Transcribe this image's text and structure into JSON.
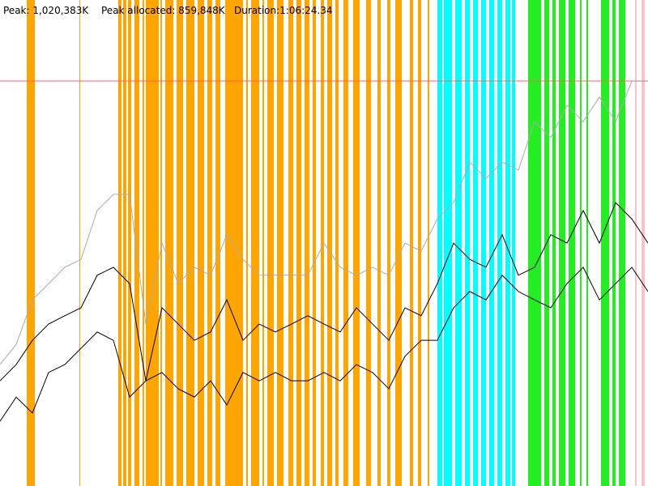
{
  "chart_data": {
    "type": "line",
    "peak_label": "Peak: 1,020,383K",
    "allocated_label": "Peak allocated: 859,848K",
    "duration_label": "Duration:1:06:24.34",
    "xlim": [
      0,
      4000
    ],
    "ylim": [
      0,
      1224460
    ],
    "peak_line": 1020383,
    "peak_color": "#ff6060",
    "x": [
      0,
      100,
      200,
      300,
      400,
      500,
      600,
      700,
      800,
      900,
      1000,
      1100,
      1200,
      1300,
      1400,
      1500,
      1600,
      1700,
      1800,
      1900,
      2000,
      2100,
      2200,
      2300,
      2400,
      2500,
      2600,
      2700,
      2800,
      2900,
      3000,
      3100,
      3200,
      3300,
      3400,
      3500,
      3600,
      3700,
      3800,
      3900,
      4000
    ],
    "series": [
      {
        "color": "#aaaaaa",
        "values": [
          306000,
          357000,
          469000,
          510000,
          551000,
          571000,
          694000,
          735000,
          735000,
          408000,
          612000,
          510000,
          551000,
          531000,
          633000,
          571000,
          531000,
          531000,
          531000,
          531000,
          612000,
          551000,
          531000,
          551000,
          531000,
          612000,
          592000,
          673000,
          714000,
          816000,
          775000,
          816000,
          796000,
          918000,
          878000,
          959000,
          918000,
          980000,
          918000,
          1020000,
          1020000
        ]
      },
      {
        "color": "#000000",
        "values": [
          265000,
          306000,
          367000,
          408000,
          429000,
          449000,
          531000,
          551000,
          510000,
          265000,
          449000,
          408000,
          367000,
          388000,
          469000,
          367000,
          408000,
          388000,
          408000,
          429000,
          408000,
          388000,
          449000,
          408000,
          367000,
          449000,
          429000,
          510000,
          612000,
          571000,
          551000,
          633000,
          531000,
          551000,
          633000,
          612000,
          694000,
          612000,
          714000,
          673000,
          612000
        ]
      },
      {
        "color": "#000000",
        "values": [
          163000,
          224000,
          184000,
          286000,
          306000,
          347000,
          388000,
          367000,
          224000,
          265000,
          286000,
          245000,
          224000,
          265000,
          204000,
          286000,
          265000,
          286000,
          265000,
          265000,
          286000,
          265000,
          306000,
          286000,
          245000,
          327000,
          367000,
          367000,
          449000,
          490000,
          469000,
          531000,
          490000,
          469000,
          449000,
          510000,
          551000,
          469000,
          510000,
          551000,
          490000
        ]
      }
    ],
    "bands": [
      {
        "color": "#ffa500",
        "intervals": [
          [
            165,
            215
          ],
          [
            490,
            495
          ],
          [
            730,
            750
          ],
          [
            760,
            780
          ],
          [
            790,
            810
          ],
          [
            830,
            860
          ],
          [
            880,
            890
          ],
          [
            900,
            980
          ],
          [
            990,
            1000
          ],
          [
            1020,
            1070
          ],
          [
            1090,
            1130
          ],
          [
            1150,
            1200
          ],
          [
            1220,
            1260
          ],
          [
            1280,
            1310
          ],
          [
            1330,
            1360
          ],
          [
            1390,
            1500
          ],
          [
            1520,
            1530
          ],
          [
            1550,
            1600
          ],
          [
            1620,
            1630
          ],
          [
            1650,
            1690
          ],
          [
            1710,
            1750
          ],
          [
            1780,
            1810
          ],
          [
            1830,
            1860
          ],
          [
            1880,
            1910
          ],
          [
            1930,
            1950
          ],
          [
            1980,
            2000
          ],
          [
            2020,
            2050
          ],
          [
            2070,
            2090
          ],
          [
            2120,
            2150
          ],
          [
            2180,
            2220
          ],
          [
            2260,
            2290
          ],
          [
            2330,
            2350
          ],
          [
            2390,
            2410
          ],
          [
            2440,
            2480
          ],
          [
            2530,
            2550
          ],
          [
            2580,
            2600
          ],
          [
            2640,
            2650
          ]
        ]
      },
      {
        "color": "#00ffff",
        "intervals": [
          [
            2700,
            2730
          ],
          [
            2740,
            2790
          ],
          [
            2810,
            2850
          ],
          [
            2870,
            2900
          ],
          [
            2920,
            2950
          ],
          [
            2970,
            3000
          ],
          [
            3020,
            3050
          ],
          [
            3070,
            3100
          ],
          [
            3120,
            3150
          ],
          [
            3160,
            3180
          ]
        ]
      },
      {
        "color": "#22ee22",
        "intervals": [
          [
            3260,
            3340
          ],
          [
            3360,
            3390
          ],
          [
            3410,
            3430
          ],
          [
            3450,
            3490
          ],
          [
            3510,
            3550
          ],
          [
            3580,
            3590
          ],
          [
            3620,
            3630
          ],
          [
            3710,
            3760
          ],
          [
            3780,
            3800
          ],
          [
            3820,
            3860
          ]
        ]
      },
      {
        "color": "#ffc0cb",
        "intervals": [
          [
            3920,
            3930
          ],
          [
            3960,
            3980
          ]
        ]
      }
    ]
  }
}
